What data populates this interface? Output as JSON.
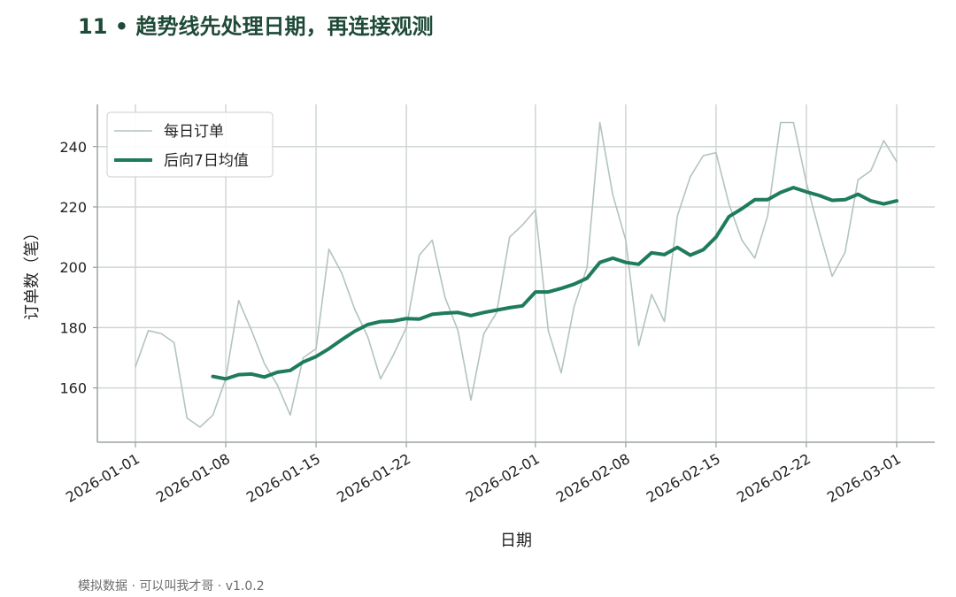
{
  "header": {
    "title": "11 • 趋势线先处理日期，再连接观测"
  },
  "footer": {
    "note": "模拟数据 · 可以叫我才哥 · v1.0.2"
  },
  "colors": {
    "raw": "#b3c4bf",
    "ma": "#1e7b5c",
    "grid": "#d0d6d4",
    "title": "#1f4a38"
  },
  "chart_data": {
    "type": "line",
    "xlabel": "日期",
    "ylabel": "订单数（笔）",
    "x_start": "2026-01-01",
    "x_end": "2026-03-01",
    "x_ticks": [
      "2026-01-01",
      "2026-01-08",
      "2026-01-15",
      "2026-01-22",
      "2026-02-01",
      "2026-02-08",
      "2026-02-15",
      "2026-02-22",
      "2026-03-01"
    ],
    "y_ticks": [
      160,
      180,
      200,
      220,
      240
    ],
    "ylim": [
      142,
      254
    ],
    "grid": true,
    "legend_position": "top-left",
    "series": [
      {
        "name": "每日订单",
        "dates": [
          "2026-01-01",
          "2026-01-02",
          "2026-01-03",
          "2026-01-04",
          "2026-01-05",
          "2026-01-06",
          "2026-01-07",
          "2026-01-08",
          "2026-01-09",
          "2026-01-10",
          "2026-01-11",
          "2026-01-12",
          "2026-01-13",
          "2026-01-14",
          "2026-01-15",
          "2026-01-16",
          "2026-01-17",
          "2026-01-18",
          "2026-01-19",
          "2026-01-20",
          "2026-01-21",
          "2026-01-22",
          "2026-01-23",
          "2026-01-24",
          "2026-01-25",
          "2026-01-26",
          "2026-01-27",
          "2026-01-28",
          "2026-01-29",
          "2026-01-30",
          "2026-01-31",
          "2026-02-01",
          "2026-02-02",
          "2026-02-03",
          "2026-02-04",
          "2026-02-05",
          "2026-02-06",
          "2026-02-07",
          "2026-02-08",
          "2026-02-09",
          "2026-02-10",
          "2026-02-11",
          "2026-02-12",
          "2026-02-13",
          "2026-02-14",
          "2026-02-15",
          "2026-02-16",
          "2026-02-17",
          "2026-02-18",
          "2026-02-19",
          "2026-02-20",
          "2026-02-21",
          "2026-02-22",
          "2026-02-23",
          "2026-02-24",
          "2026-02-25",
          "2026-02-26",
          "2026-02-27",
          "2026-02-28",
          "2026-03-01"
        ],
        "values": [
          167,
          179,
          178,
          175,
          150,
          147,
          151,
          163,
          189,
          179,
          168,
          161,
          151,
          170,
          173,
          206,
          198,
          186,
          177,
          163,
          171,
          180,
          204,
          209,
          190,
          179,
          156,
          178,
          185,
          210,
          214,
          219,
          179,
          165,
          187,
          200,
          248,
          224,
          209,
          174,
          191,
          182,
          217,
          230,
          237,
          238,
          221,
          209,
          203,
          217,
          248,
          248,
          228,
          212,
          197,
          205,
          229,
          232,
          242,
          235
        ]
      },
      {
        "name": "后向7日均值",
        "dates": [
          "2026-01-07",
          "2026-01-08",
          "2026-01-09",
          "2026-01-10",
          "2026-01-11",
          "2026-01-12",
          "2026-01-13",
          "2026-01-14",
          "2026-01-15",
          "2026-01-16",
          "2026-01-17",
          "2026-01-18",
          "2026-01-19",
          "2026-01-20",
          "2026-01-21",
          "2026-01-22",
          "2026-01-23",
          "2026-01-24",
          "2026-01-25",
          "2026-01-26",
          "2026-01-27",
          "2026-01-28",
          "2026-01-29",
          "2026-01-30",
          "2026-01-31",
          "2026-02-01",
          "2026-02-02",
          "2026-02-03",
          "2026-02-04",
          "2026-02-05",
          "2026-02-06",
          "2026-02-07",
          "2026-02-08",
          "2026-02-09",
          "2026-02-10",
          "2026-02-11",
          "2026-02-12",
          "2026-02-13",
          "2026-02-14",
          "2026-02-15",
          "2026-02-16",
          "2026-02-17",
          "2026-02-18",
          "2026-02-19",
          "2026-02-20",
          "2026-02-21",
          "2026-02-22",
          "2026-02-23",
          "2026-02-24",
          "2026-02-25",
          "2026-02-26",
          "2026-02-27",
          "2026-02-28",
          "2026-03-01"
        ],
        "values": [
          163.8,
          163.0,
          164.4,
          164.6,
          163.6,
          165.2,
          165.8,
          168.6,
          170.4,
          173.0,
          176.0,
          178.8,
          181.0,
          182.0,
          182.2,
          183.0,
          182.8,
          184.4,
          184.8,
          185.0,
          184.0,
          185.0,
          185.8,
          186.6,
          187.2,
          191.8,
          191.8,
          193.0,
          194.4,
          196.4,
          201.6,
          203.0,
          201.6,
          201.0,
          204.8,
          204.2,
          206.6,
          204.0,
          205.8,
          210.0,
          216.8,
          219.4,
          222.4,
          222.4,
          224.8,
          226.4,
          225.0,
          223.8,
          222.2,
          222.4,
          224.2,
          222.0,
          221.0,
          222.0
        ]
      }
    ]
  }
}
